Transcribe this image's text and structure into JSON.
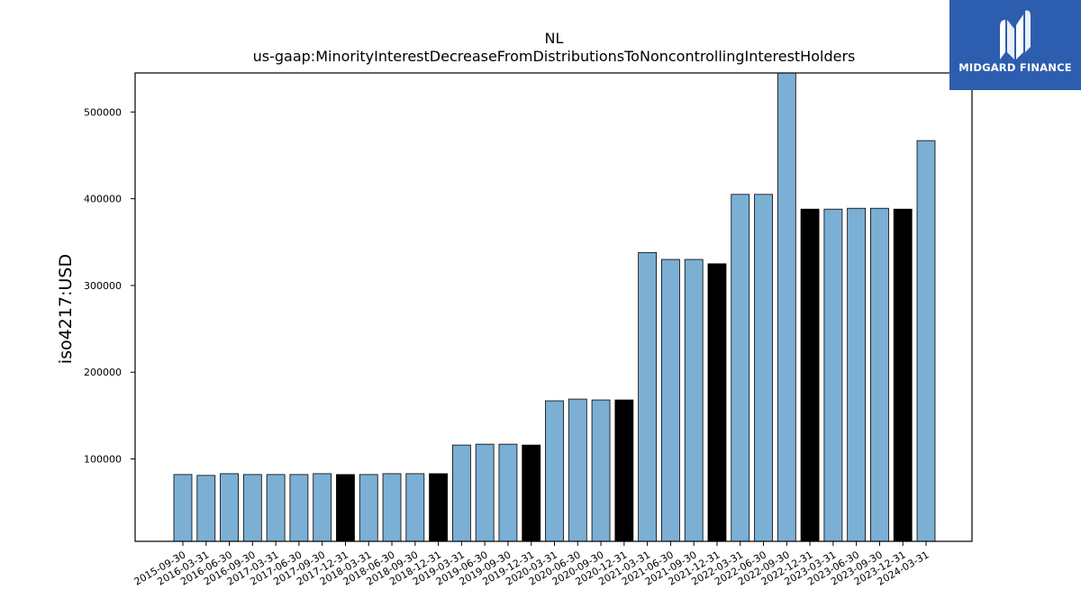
{
  "chart_data": {
    "type": "bar",
    "title": "NL",
    "subtitle": "us-gaap:MinorityInterestDecreaseFromDistributionsToNoncontrollingInterestHolders",
    "xlabel": "",
    "ylabel": "iso4217:USD",
    "ylim": [
      5000,
      545000
    ],
    "yticks": [
      100000,
      200000,
      300000,
      400000,
      500000
    ],
    "grid": false,
    "categories": [
      "2015-09-30",
      "2016-03-31",
      "2016-06-30",
      "2016-09-30",
      "2017-03-31",
      "2017-06-30",
      "2017-09-30",
      "2017-12-31",
      "2018-03-31",
      "2018-06-30",
      "2018-09-30",
      "2018-12-31",
      "2019-03-31",
      "2019-06-30",
      "2019-09-30",
      "2019-12-31",
      "2020-03-31",
      "2020-06-30",
      "2020-09-30",
      "2020-12-31",
      "2021-03-31",
      "2021-06-30",
      "2021-09-30",
      "2021-12-31",
      "2022-03-31",
      "2022-06-30",
      "2022-09-30",
      "2022-12-31",
      "2023-03-31",
      "2023-06-30",
      "2023-09-30",
      "2023-12-31",
      "2024-03-31"
    ],
    "values": [
      82000,
      81000,
      83000,
      82000,
      82000,
      82000,
      83000,
      82000,
      82000,
      83000,
      83000,
      83000,
      116000,
      117000,
      117000,
      116000,
      167000,
      169000,
      168000,
      168000,
      338000,
      330000,
      330000,
      325000,
      405000,
      405000,
      545000,
      388000,
      388000,
      389000,
      389000,
      388000,
      467000
    ],
    "bar_colors": [
      "#7bafd4",
      "#7bafd4",
      "#7bafd4",
      "#7bafd4",
      "#7bafd4",
      "#7bafd4",
      "#7bafd4",
      "#000000",
      "#7bafd4",
      "#7bafd4",
      "#7bafd4",
      "#000000",
      "#7bafd4",
      "#7bafd4",
      "#7bafd4",
      "#000000",
      "#7bafd4",
      "#7bafd4",
      "#7bafd4",
      "#000000",
      "#7bafd4",
      "#7bafd4",
      "#7bafd4",
      "#000000",
      "#7bafd4",
      "#7bafd4",
      "#7bafd4",
      "#000000",
      "#7bafd4",
      "#7bafd4",
      "#7bafd4",
      "#000000",
      "#7bafd4"
    ]
  },
  "logo": {
    "text": "MIDGARD FINANCE",
    "background": "#2d5dae",
    "icon": "midgard-logo-icon"
  }
}
